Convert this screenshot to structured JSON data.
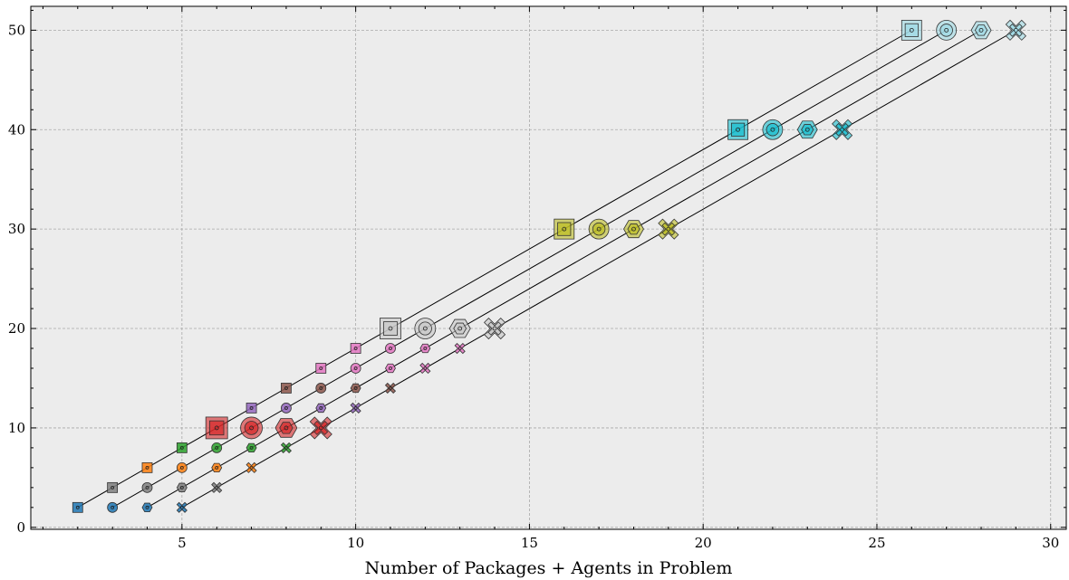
{
  "chart_data": {
    "type": "scatter",
    "xlabel": "Number of Packages + Agents in Problem",
    "ylabel": "",
    "xlim": [
      0.65,
      30.45
    ],
    "ylim": [
      -0.2,
      52.4
    ],
    "xticks": [
      5,
      10,
      15,
      20,
      25,
      30
    ],
    "yticks": [
      0,
      10,
      20,
      30,
      40,
      50
    ],
    "grid": true,
    "legend": "none",
    "colors": {
      "background": "#ececec",
      "grid": "#a8a8a8",
      "line": "#000000",
      "point_colors": {
        "2": "#1f77b4",
        "4": "#7f7f7f",
        "6": "#ff7f0e",
        "8": "#2ca02c",
        "10": "#d62728",
        "12": "#9467bd",
        "14": "#8c564b",
        "16": "#e377c2",
        "18": "#e377c2",
        "20": "#c7c7c7",
        "30": "#bcbd22",
        "40": "#17becf",
        "50": "#9edae5"
      }
    },
    "series": [
      {
        "marker": "square",
        "x": [
          2,
          3,
          4,
          5,
          6,
          7,
          8,
          9,
          10,
          11,
          16,
          21,
          26
        ],
        "y": [
          2,
          4,
          6,
          8,
          10,
          12,
          14,
          16,
          18,
          20,
          30,
          40,
          50
        ]
      },
      {
        "marker": "circle",
        "x": [
          3,
          4,
          5,
          6,
          7,
          8,
          9,
          10,
          11,
          12,
          17,
          22,
          27
        ],
        "y": [
          2,
          4,
          6,
          8,
          10,
          12,
          14,
          16,
          18,
          20,
          30,
          40,
          50
        ]
      },
      {
        "marker": "hexagon",
        "x": [
          4,
          5,
          6,
          7,
          8,
          9,
          10,
          11,
          12,
          13,
          18,
          23,
          28
        ],
        "y": [
          2,
          4,
          6,
          8,
          10,
          12,
          14,
          16,
          18,
          20,
          30,
          40,
          50
        ]
      },
      {
        "marker": "x",
        "x": [
          5,
          6,
          7,
          8,
          9,
          10,
          11,
          12,
          13,
          14,
          19,
          24,
          29
        ],
        "y": [
          2,
          4,
          6,
          8,
          10,
          12,
          14,
          16,
          18,
          20,
          30,
          40,
          50
        ]
      }
    ]
  }
}
